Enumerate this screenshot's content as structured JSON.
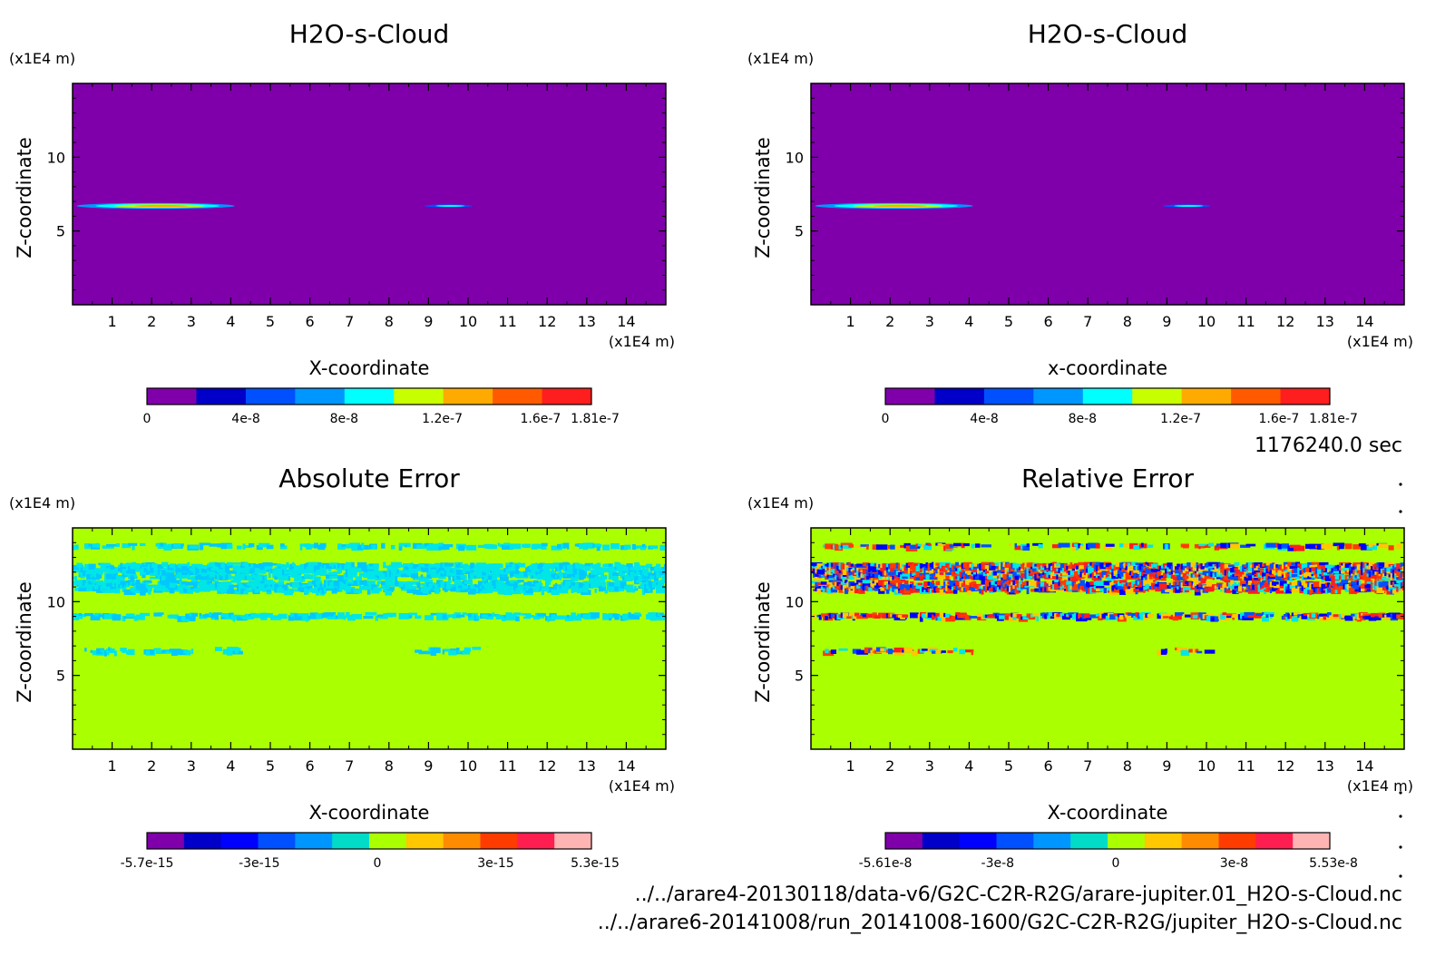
{
  "timestamp": "1176240.0 sec",
  "footer": {
    "file1": "../../arare4-20130118/data-v6/G2C-C2R-R2G/arare-jupiter.01_H2O-s-Cloud.nc",
    "file2": "../../arare6-20141008/run_20141008-1600/G2C-C2R-R2G/jupiter_H2O-s-Cloud.nc"
  },
  "chart_data": [
    {
      "type": "heatmap",
      "title": "H2O-s-Cloud",
      "xlabel": "X-coordinate",
      "ylabel": "Z-coordinate",
      "x_unit": "(x1E4 m)",
      "y_unit": "(x1E4 m)",
      "xlim": [
        0,
        15
      ],
      "ylim": [
        0,
        15
      ],
      "xticks": [
        1,
        2,
        3,
        4,
        5,
        6,
        7,
        8,
        9,
        10,
        11,
        12,
        13,
        14
      ],
      "yticks": [
        5,
        10
      ],
      "background_color": "#7f00aa",
      "colorbar": {
        "colors": [
          "#7f00aa",
          "#0000c8",
          "#0050ff",
          "#0096ff",
          "#00ffff",
          "#c8ff00",
          "#ffaa00",
          "#ff5a00",
          "#ff1e1e"
        ],
        "ticks": [
          "0",
          "4e-8",
          "8e-8",
          "1.2e-7",
          "1.6e-7",
          "1.81e-7"
        ]
      },
      "features": [
        {
          "shape": "ellipse",
          "cx": 2.1,
          "cz": 6.7,
          "rx": 2.0,
          "rz": 0.2,
          "rings": [
            "#0096ff",
            "#00ffff",
            "#c8ff00",
            "#ffaa00"
          ]
        },
        {
          "shape": "ellipse",
          "cx": 9.5,
          "cz": 6.7,
          "rx": 0.6,
          "rz": 0.1,
          "rings": [
            "#0050ff",
            "#00ffff"
          ]
        }
      ]
    },
    {
      "type": "heatmap",
      "title": "H2O-s-Cloud",
      "xlabel": "x-coordinate",
      "ylabel": "Z-coordinate",
      "x_unit": "(x1E4 m)",
      "y_unit": "(x1E4 m)",
      "xlim": [
        0,
        15
      ],
      "ylim": [
        0,
        15
      ],
      "xticks": [
        1,
        2,
        3,
        4,
        5,
        6,
        7,
        8,
        9,
        10,
        11,
        12,
        13,
        14
      ],
      "yticks": [
        5,
        10
      ],
      "background_color": "#7f00aa",
      "colorbar": {
        "colors": [
          "#7f00aa",
          "#0000c8",
          "#0050ff",
          "#0096ff",
          "#00ffff",
          "#c8ff00",
          "#ffaa00",
          "#ff5a00",
          "#ff1e1e"
        ],
        "ticks": [
          "0",
          "4e-8",
          "8e-8",
          "1.2e-7",
          "1.6e-7",
          "1.81e-7"
        ]
      },
      "features": [
        {
          "shape": "ellipse",
          "cx": 2.1,
          "cz": 6.7,
          "rx": 2.0,
          "rz": 0.2,
          "rings": [
            "#0096ff",
            "#00ffff",
            "#c8ff00",
            "#ffaa00"
          ]
        },
        {
          "shape": "ellipse",
          "cx": 9.5,
          "cz": 6.7,
          "rx": 0.6,
          "rz": 0.1,
          "rings": [
            "#0050ff",
            "#00ffff"
          ]
        }
      ]
    },
    {
      "type": "heatmap",
      "title": "Absolute Error",
      "xlabel": "X-coordinate",
      "ylabel": "Z-coordinate",
      "x_unit": "(x1E4 m)",
      "y_unit": "(x1E4 m)",
      "xlim": [
        0,
        15
      ],
      "ylim": [
        0,
        15
      ],
      "xticks": [
        1,
        2,
        3,
        4,
        5,
        6,
        7,
        8,
        9,
        10,
        11,
        12,
        13,
        14
      ],
      "yticks": [
        5,
        10
      ],
      "background_color": "#aaff00",
      "colorbar": {
        "colors": [
          "#7f00aa",
          "#0000c8",
          "#0000ff",
          "#0050ff",
          "#0096ff",
          "#00dcc8",
          "#aaff00",
          "#ffc800",
          "#ff8c00",
          "#ff3c00",
          "#ff1e50",
          "#ffb4b4"
        ],
        "ticks": [
          "-5.7e-15",
          "-3e-15",
          "0",
          "3e-15",
          "5.3e-15"
        ]
      },
      "noise": {
        "seed": 11,
        "colors": [
          "#00e6e6",
          "#00e6e6",
          "#00c8ff"
        ],
        "bands": [
          [
            13.7,
            13.9,
            0.25
          ],
          [
            11.6,
            12.6,
            0.35
          ],
          [
            10.7,
            11.4,
            0.3
          ],
          [
            8.9,
            9.2,
            0.35
          ],
          [
            6.55,
            6.85,
            0.2
          ]
        ],
        "mask_lowband": [
          [
            0.3,
            4.2
          ],
          [
            8.6,
            10.2
          ]
        ]
      }
    },
    {
      "type": "heatmap",
      "title": "Relative Error",
      "xlabel": "X-coordinate",
      "ylabel": "Z-coordinate",
      "x_unit": "(x1E4 m)",
      "y_unit": "(x1E4 m)",
      "xlim": [
        0,
        15
      ],
      "ylim": [
        0,
        15
      ],
      "xticks": [
        1,
        2,
        3,
        4,
        5,
        6,
        7,
        8,
        9,
        10,
        11,
        12,
        13,
        14
      ],
      "yticks": [
        5,
        10
      ],
      "background_color": "#aaff00",
      "colorbar": {
        "colors": [
          "#7f00aa",
          "#0000c8",
          "#0000ff",
          "#0050ff",
          "#0096ff",
          "#00dcc8",
          "#aaff00",
          "#ffc800",
          "#ff8c00",
          "#ff3c00",
          "#ff1e50",
          "#ffb4b4"
        ],
        "ticks": [
          "-5.61e-8",
          "-3e-8",
          "0",
          "3e-8",
          "5.53e-8"
        ]
      },
      "noise": {
        "seed": 23,
        "colors": [
          "#0050ff",
          "#00e6e6",
          "#ff3c00",
          "#ffc800",
          "#0000ff",
          "#ff1e1e"
        ],
        "bands": [
          [
            13.7,
            13.9,
            0.2
          ],
          [
            11.6,
            12.6,
            0.5
          ],
          [
            10.7,
            11.4,
            0.4
          ],
          [
            8.9,
            9.2,
            0.45
          ],
          [
            6.55,
            6.85,
            0.25
          ]
        ],
        "mask_lowband": [
          [
            0.3,
            4.2
          ],
          [
            8.6,
            10.2
          ]
        ]
      }
    }
  ]
}
